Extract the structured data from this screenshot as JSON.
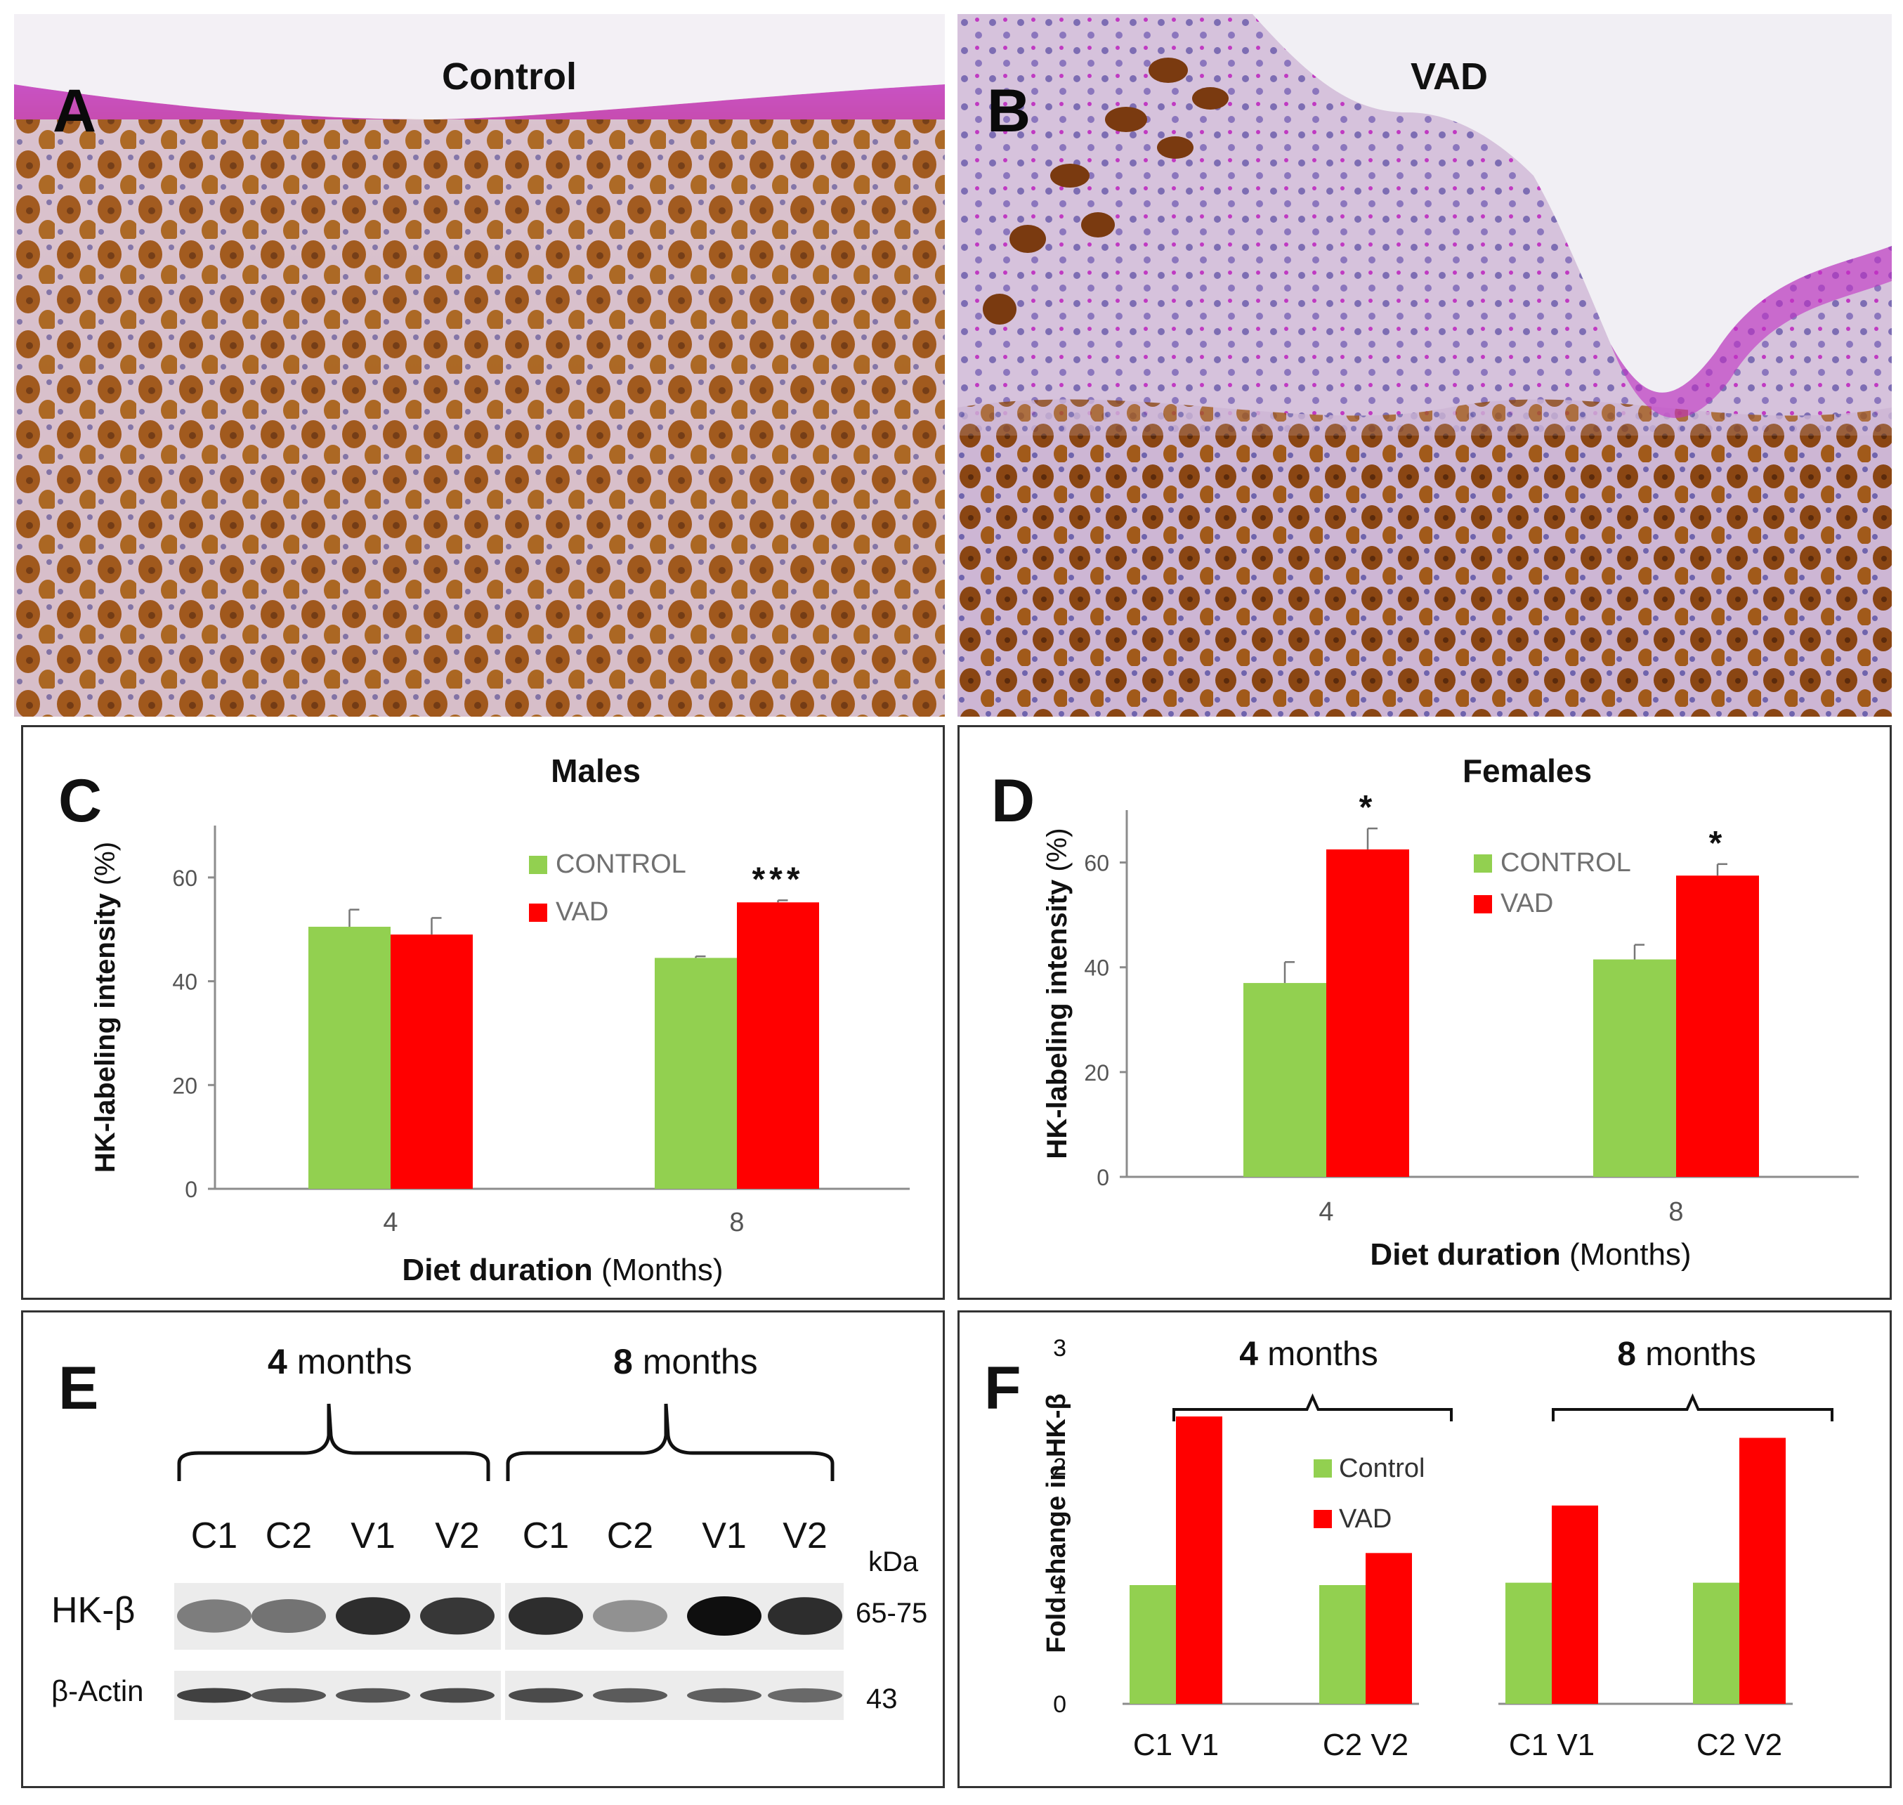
{
  "panels": {
    "A": {
      "letter": "A",
      "title": "Control"
    },
    "B": {
      "letter": "B",
      "title": "VAD"
    }
  },
  "chart_data": [
    {
      "panel": "C",
      "type": "bar",
      "title": "Males",
      "categories": [
        "4",
        "8"
      ],
      "series": [
        {
          "name": "CONTROL",
          "values": [
            50.5,
            44.5
          ],
          "errors": [
            3.3,
            0.3
          ]
        },
        {
          "name": "VAD",
          "values": [
            49.0,
            55.2
          ],
          "errors": [
            3.2,
            0.4
          ]
        }
      ],
      "significance": [
        "",
        "***"
      ],
      "ylabel_bold": "HK-labeling  intensity",
      "ylabel_rest": " (%)",
      "xlabel_bold": "Diet duration",
      "xlabel_rest": " (Months)",
      "yticks": [
        0,
        20,
        40,
        60
      ],
      "ylim": [
        0,
        70
      ],
      "legend": "top-right"
    },
    {
      "panel": "D",
      "type": "bar",
      "title": "Females",
      "categories": [
        "4",
        "8"
      ],
      "series": [
        {
          "name": "CONTROL",
          "values": [
            37.0,
            41.5
          ],
          "errors": [
            4.0,
            2.8
          ]
        },
        {
          "name": "VAD",
          "values": [
            62.5,
            57.5
          ],
          "errors": [
            4.0,
            2.2
          ]
        }
      ],
      "significance": [
        "*",
        "*"
      ],
      "ylabel_bold": "HK-labeling intensity",
      "ylabel_rest": " (%)",
      "xlabel_bold": "Diet duration",
      "xlabel_rest": " (Months)",
      "yticks": [
        0,
        20,
        40,
        60
      ],
      "ylim": [
        0,
        70
      ],
      "legend": "top-right"
    },
    {
      "panel": "F",
      "type": "bar",
      "groups": [
        {
          "label_bold": "4",
          "label_rest": " months",
          "pairs": [
            "C1 V1",
            "C2 V2"
          ]
        },
        {
          "label_bold": "8",
          "label_rest": " months",
          "pairs": [
            "C1 V1",
            "C2 V2"
          ]
        }
      ],
      "series": [
        {
          "name": "Control",
          "values": [
            1.0,
            1.0,
            1.02,
            1.02
          ]
        },
        {
          "name": "VAD",
          "values": [
            2.42,
            1.27,
            1.67,
            2.24
          ]
        }
      ],
      "ylabel": "Fold change in HK-β",
      "yticks": [
        0,
        1,
        2,
        3
      ],
      "ylim": [
        0,
        3
      ],
      "legend": "top-center"
    }
  ],
  "blot": {
    "letter": "E",
    "groups": [
      {
        "bold": "4",
        "rest": " months"
      },
      {
        "bold": "8",
        "rest": " months"
      }
    ],
    "lanes": [
      "C1",
      "C2",
      "V1",
      "V2",
      "C1",
      "C2",
      "V1",
      "V2"
    ],
    "kda_label": "kDa",
    "rows": [
      {
        "label": "HK-β",
        "kda": "65-75",
        "intensities": [
          0.45,
          0.5,
          0.85,
          0.8,
          0.85,
          0.35,
          1.0,
          0.85
        ]
      },
      {
        "label": "β-Actin",
        "kda": "43",
        "intensities": [
          0.75,
          0.65,
          0.65,
          0.7,
          0.7,
          0.62,
          0.6,
          0.55
        ]
      }
    ]
  },
  "panel_letters": {
    "C": "C",
    "D": "D",
    "F": "F"
  },
  "colors": {
    "control": "#92d050",
    "vad": "#ff0000",
    "axis": "#8c8c8c",
    "frame": "#333333"
  }
}
